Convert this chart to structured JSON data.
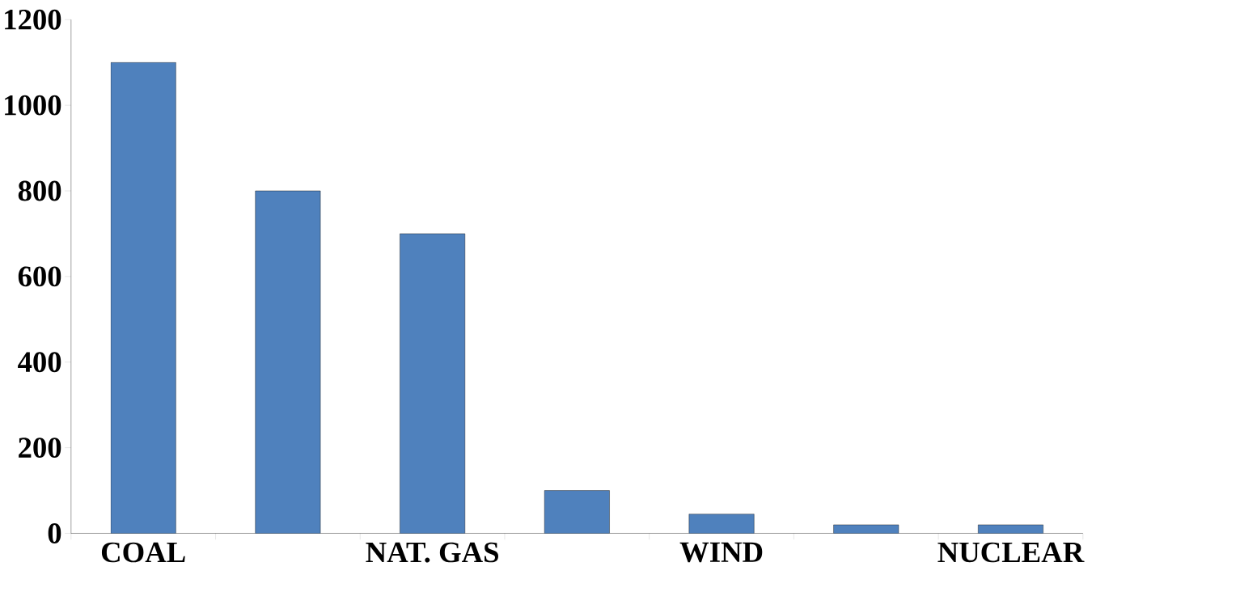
{
  "chart_data": {
    "type": "bar",
    "categories": [
      "COAL",
      null,
      "NAT. GAS",
      null,
      "WIND",
      null,
      "NUCLEAR"
    ],
    "values": [
      1100,
      800,
      700,
      100,
      45,
      20,
      20
    ],
    "color": "#4f81bd",
    "ylim": [
      0,
      1200
    ],
    "yticks": [
      0,
      200,
      400,
      600,
      800,
      1000,
      1200
    ],
    "grid": false
  }
}
